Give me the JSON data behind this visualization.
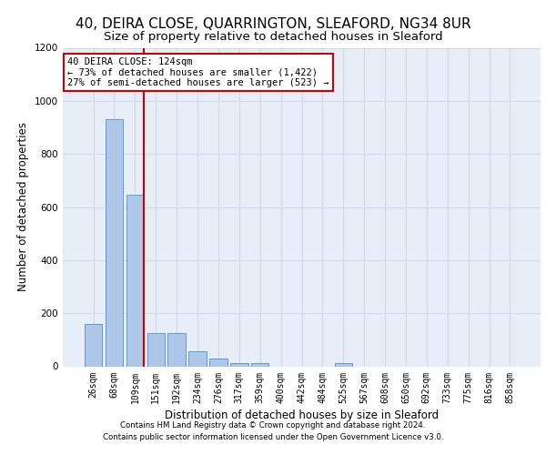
{
  "title1": "40, DEIRA CLOSE, QUARRINGTON, SLEAFORD, NG34 8UR",
  "title2": "Size of property relative to detached houses in Sleaford",
  "xlabel": "Distribution of detached houses by size in Sleaford",
  "ylabel": "Number of detached properties",
  "categories": [
    "26sqm",
    "68sqm",
    "109sqm",
    "151sqm",
    "192sqm",
    "234sqm",
    "276sqm",
    "317sqm",
    "359sqm",
    "400sqm",
    "442sqm",
    "484sqm",
    "525sqm",
    "567sqm",
    "608sqm",
    "650sqm",
    "692sqm",
    "733sqm",
    "775sqm",
    "816sqm",
    "858sqm"
  ],
  "values": [
    160,
    930,
    648,
    125,
    125,
    55,
    28,
    12,
    12,
    0,
    0,
    0,
    12,
    0,
    0,
    0,
    0,
    0,
    0,
    0,
    0
  ],
  "bar_color": "#aec6e8",
  "bar_edgecolor": "#5b9bd5",
  "vline_x_index": 2,
  "vline_color": "#cc0000",
  "annotation_line1": "40 DEIRA CLOSE: 124sqm",
  "annotation_line2": "← 73% of detached houses are smaller (1,422)",
  "annotation_line3": "27% of semi-detached houses are larger (523) →",
  "ylim": [
    0,
    1200
  ],
  "yticks": [
    0,
    200,
    400,
    600,
    800,
    1000,
    1200
  ],
  "grid_color": "#d0d8e8",
  "bg_color": "#e8eef8",
  "footer1": "Contains HM Land Registry data © Crown copyright and database right 2024.",
  "footer2": "Contains public sector information licensed under the Open Government Licence v3.0.",
  "title1_fontsize": 11,
  "title2_fontsize": 9.5,
  "tick_fontsize": 7,
  "ylabel_fontsize": 8.5,
  "xlabel_fontsize": 8.5,
  "footer_fontsize": 6.2,
  "annot_fontsize": 7.5
}
